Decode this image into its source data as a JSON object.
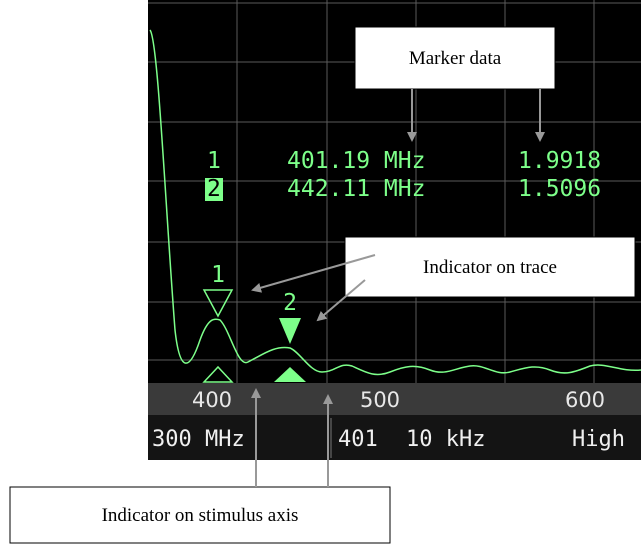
{
  "callouts": {
    "marker_data": "Marker data",
    "trace_indicator": "Indicator on trace",
    "stimulus_indicator": "Indicator on stimulus axis"
  },
  "markers": [
    {
      "label": "1",
      "frequency": "401.19 MHz",
      "value": "1.9918"
    },
    {
      "label": "2",
      "frequency": "442.11 MHz",
      "value": "1.5096"
    }
  ],
  "axis_ticks": [
    "400",
    "500",
    "600"
  ],
  "status": {
    "start": "300 MHz",
    "points": "401",
    "ifbw": "10 kHz",
    "power": "High"
  }
}
